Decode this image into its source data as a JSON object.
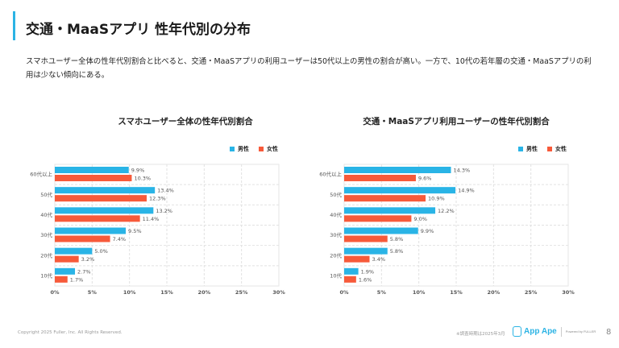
{
  "header": {
    "title": "交通・MaaSアプリ 性年代別の分布"
  },
  "description": "スマホユーザー全体の性年代別割合と比べると、交通・MaaSアプリの利用ユーザーは50代以上の男性の割合が高い。一方で、10代の若年層の交通・MaaSアプリの利用は少ない傾向にある。",
  "legend": {
    "male": "男性",
    "female": "女性"
  },
  "colors": {
    "male": "#29b4e6",
    "female": "#f75a3a",
    "accent": "#2bb3e4"
  },
  "chart_data": [
    {
      "type": "bar",
      "orientation": "horizontal",
      "title": "スマホユーザー全体の性年代別割合",
      "categories": [
        "60代以上",
        "50代",
        "40代",
        "30代",
        "20代",
        "10代"
      ],
      "series": [
        {
          "name": "男性",
          "values": [
            9.9,
            13.4,
            13.2,
            9.5,
            5.0,
            2.7
          ]
        },
        {
          "name": "女性",
          "values": [
            10.3,
            12.3,
            11.4,
            7.4,
            3.2,
            1.7
          ]
        }
      ],
      "xlim": [
        0,
        30
      ],
      "xticks": [
        "0%",
        "5%",
        "10%",
        "15%",
        "20%",
        "25%",
        "30%"
      ],
      "grid": true,
      "legend": "top-right"
    },
    {
      "type": "bar",
      "orientation": "horizontal",
      "title": "交通・MaaSアプリ利用ユーザーの性年代別割合",
      "categories": [
        "60代以上",
        "50代",
        "40代",
        "30代",
        "20代",
        "10代"
      ],
      "series": [
        {
          "name": "男性",
          "values": [
            14.3,
            14.9,
            12.2,
            9.9,
            5.8,
            1.9
          ]
        },
        {
          "name": "女性",
          "values": [
            9.6,
            10.9,
            9.0,
            5.8,
            3.4,
            1.6
          ]
        }
      ],
      "xlim": [
        0,
        30
      ],
      "xticks": [
        "0%",
        "5%",
        "10%",
        "15%",
        "20%",
        "25%",
        "30%"
      ],
      "grid": true,
      "legend": "top-right"
    }
  ],
  "footer": {
    "copyright": "Copyright 2025 Fuller, Inc. All Rights Reserved.",
    "note": "※調査時期は2025年3月",
    "logo": "App Ape",
    "powered": "Powered by FULLER",
    "page": "8"
  }
}
